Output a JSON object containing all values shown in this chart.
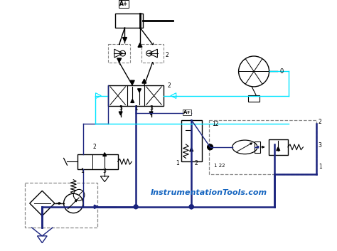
{
  "background_color": "#ffffff",
  "dk": "#1a237e",
  "cy": "#00e5ff",
  "bk": "#000000",
  "gray": "#888888",
  "watermark": "InstrumentationTools.com",
  "watermark_color": "#1565c0",
  "figsize": [
    4.74,
    3.53
  ],
  "dpi": 100
}
